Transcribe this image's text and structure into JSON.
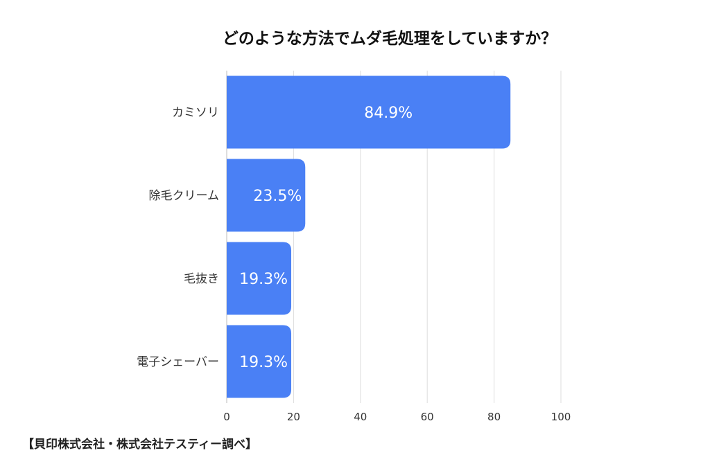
{
  "chart_data": {
    "type": "bar",
    "orientation": "horizontal",
    "title": "どのような方法でムダ毛処理をしていますか？",
    "categories": [
      "カミソリ",
      "除毛クリーム",
      "毛抜き",
      "電子シェーバー"
    ],
    "values": [
      84.9,
      23.5,
      19.3,
      19.3
    ],
    "data_labels": [
      "84.9%",
      "23.5%",
      "19.3%",
      "19.3%"
    ],
    "xlim": [
      0,
      100
    ],
    "x_ticks": [
      0,
      20,
      40,
      60,
      80,
      100
    ],
    "grid": true,
    "bar_color": "#4a80f5",
    "grid_color": "#dddddd"
  },
  "source": "【貝印株式会社・株式会社テスティー調べ】"
}
